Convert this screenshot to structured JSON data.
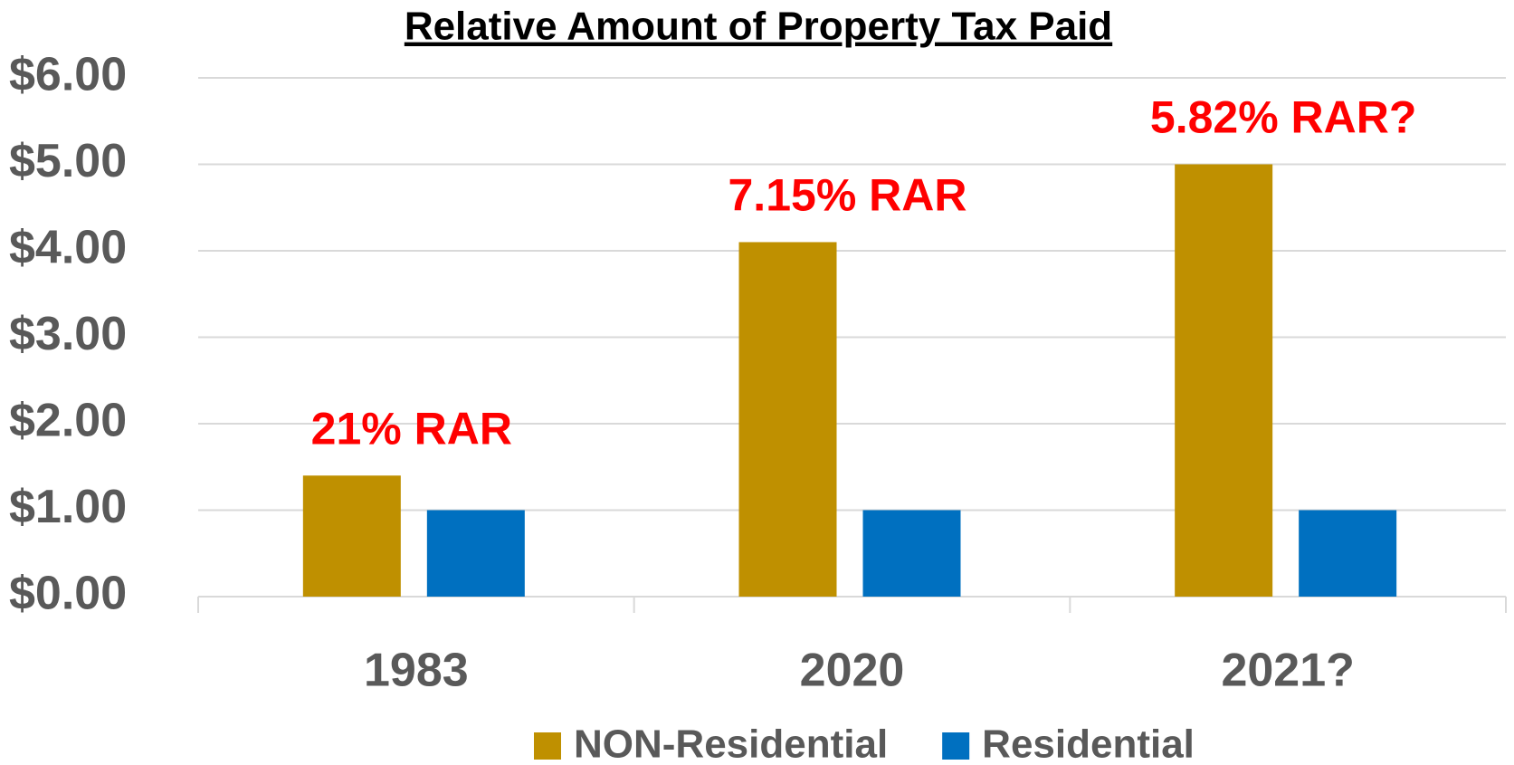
{
  "chart_data": {
    "type": "bar",
    "title": "Relative Amount of Property Tax Paid",
    "categories": [
      "1983",
      "2020",
      "2021?"
    ],
    "series": [
      {
        "name": "NON-Residential",
        "color": "#bf9000",
        "values": [
          1.4,
          4.1,
          5.0
        ]
      },
      {
        "name": "Residential",
        "color": "#0070c0",
        "values": [
          1,
          1,
          1
        ]
      }
    ],
    "annotations": [
      "21% RAR",
      "7.15% RAR",
      "5.82% RAR?"
    ],
    "ylim": [
      0,
      6
    ],
    "yticks": [
      {
        "value": 0,
        "label": "$0.00"
      },
      {
        "value": 1,
        "label": "$1.00"
      },
      {
        "value": 2,
        "label": "$2.00"
      },
      {
        "value": 3,
        "label": "$3.00"
      },
      {
        "value": 4,
        "label": "$4.00"
      },
      {
        "value": 5,
        "label": "$5.00"
      },
      {
        "value": 6,
        "label": "$6.00"
      }
    ],
    "grid": true,
    "legend": "bottom"
  }
}
